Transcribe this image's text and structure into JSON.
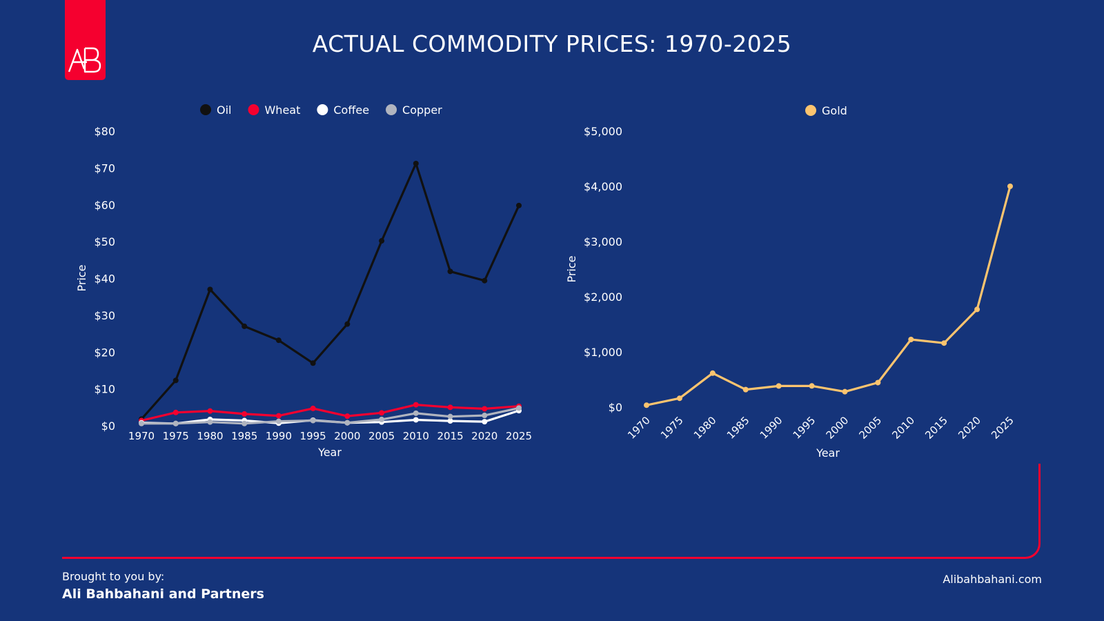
{
  "title": "ACTUAL COMMODITY PRICES: 1970-2025",
  "logo_text": "AB",
  "footer": {
    "intro": "Brought to you by:",
    "company": "Ali Bahbahani and Partners",
    "website": "Alibahbahani.com"
  },
  "colors": {
    "background": "#15347a",
    "accent": "#f5002f",
    "oil": "#111111",
    "wheat": "#f5002f",
    "coffee": "#ffffff",
    "copper": "#b0b4bf",
    "gold": "#fcc46f"
  },
  "chart_data": [
    {
      "type": "line",
      "title": "",
      "xlabel": "Year",
      "ylabel": "Price",
      "x": [
        "1970",
        "1975",
        "1980",
        "1985",
        "1990",
        "1995",
        "2000",
        "2005",
        "2010",
        "2015",
        "2020",
        "2025"
      ],
      "ylim": [
        0,
        80
      ],
      "yticks": [
        "$0",
        "$10",
        "$20",
        "$30",
        "$40",
        "$50",
        "$60",
        "$70",
        "$80"
      ],
      "legend": "top-center",
      "grid": false,
      "series": [
        {
          "name": "Oil",
          "color": "#111111",
          "values": [
            1.8,
            12.3,
            37,
            27,
            23.2,
            17,
            27.6,
            50.2,
            71.2,
            41.9,
            39.4,
            59.8
          ]
        },
        {
          "name": "Wheat",
          "color": "#f5002f",
          "values": [
            1.4,
            3.6,
            4.0,
            3.2,
            2.7,
            4.7,
            2.6,
            3.5,
            5.7,
            5.0,
            4.6,
            5.3
          ]
        },
        {
          "name": "Coffee",
          "color": "#ffffff",
          "values": [
            0.8,
            0.6,
            1.7,
            1.4,
            0.7,
            1.5,
            0.8,
            1.0,
            1.6,
            1.3,
            1.1,
            4.1
          ]
        },
        {
          "name": "Copper",
          "color": "#b0b4bf",
          "values": [
            0.6,
            0.6,
            1.0,
            0.6,
            1.2,
            1.4,
            0.8,
            1.7,
            3.4,
            2.5,
            2.8,
            4.8
          ]
        }
      ]
    },
    {
      "type": "line",
      "title": "",
      "xlabel": "Year",
      "ylabel": "Price",
      "x": [
        "1970",
        "1975",
        "1980",
        "1985",
        "1990",
        "1995",
        "2000",
        "2005",
        "2010",
        "2015",
        "2020",
        "2025"
      ],
      "ylim": [
        0,
        5000
      ],
      "yticks": [
        "$0",
        "$1,000",
        "$2,000",
        "$3,000",
        "$4,000",
        "$5,000"
      ],
      "legend": "top-center",
      "grid": false,
      "series": [
        {
          "name": "Gold",
          "color": "#fcc46f",
          "values": [
            35,
            160,
            615,
            317,
            383,
            384,
            279,
            444,
            1225,
            1160,
            1770,
            4000
          ]
        }
      ]
    }
  ]
}
